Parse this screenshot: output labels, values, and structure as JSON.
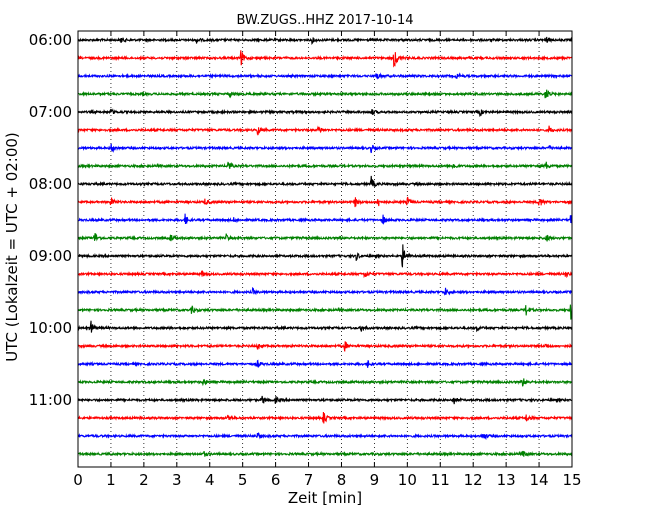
{
  "chart_data": {
    "type": "line",
    "title": "BW.ZUGS..HHZ 2017-10-14",
    "xlabel": "Zeit  [min]",
    "ylabel": "UTC (Lokalzeit = UTC + 02:00)",
    "xlim": [
      0,
      15
    ],
    "x_ticks": [
      "0",
      "1",
      "2",
      "3",
      "4",
      "5",
      "6",
      "7",
      "8",
      "9",
      "10",
      "11",
      "12",
      "13",
      "14",
      "15"
    ],
    "y_ticks": [
      "06:00",
      "07:00",
      "08:00",
      "09:00",
      "10:00",
      "11:00"
    ],
    "grid": "vertical dotted",
    "trace_colors": [
      "#000000",
      "#ff0000",
      "#0000ff",
      "#008000"
    ],
    "traces": [
      {
        "start": "06:00",
        "events": [
          [
            1.3,
            0.25
          ],
          [
            3.6,
            0.2
          ],
          [
            7.1,
            0.2
          ],
          [
            14.2,
            0.3
          ]
        ]
      },
      {
        "start": "06:15",
        "events": [
          [
            4.95,
            0.6
          ],
          [
            9.6,
            0.9
          ]
        ]
      },
      {
        "start": "06:30",
        "events": [
          [
            9.05,
            0.35
          ],
          [
            11.5,
            0.2
          ]
        ]
      },
      {
        "start": "06:45",
        "events": [
          [
            4.6,
            0.2
          ],
          [
            14.2,
            0.55
          ]
        ]
      },
      {
        "start": "07:00",
        "events": [
          [
            1.0,
            0.2
          ],
          [
            8.9,
            0.3
          ],
          [
            12.2,
            0.25
          ]
        ]
      },
      {
        "start": "07:15",
        "events": [
          [
            5.45,
            0.35
          ],
          [
            7.3,
            0.3
          ],
          [
            14.3,
            0.3
          ]
        ]
      },
      {
        "start": "07:30",
        "events": [
          [
            1.0,
            0.45
          ],
          [
            8.9,
            0.3
          ],
          [
            14.3,
            0.2
          ]
        ]
      },
      {
        "start": "07:45",
        "events": [
          [
            4.55,
            0.45
          ],
          [
            11.4,
            0.25
          ],
          [
            14.2,
            0.35
          ]
        ]
      },
      {
        "start": "08:00",
        "events": [
          [
            8.9,
            0.55
          ]
        ]
      },
      {
        "start": "08:15",
        "events": [
          [
            1.0,
            0.35
          ],
          [
            3.85,
            0.25
          ],
          [
            8.4,
            0.4
          ],
          [
            9.1,
            0.4
          ],
          [
            10.0,
            0.35
          ],
          [
            14.0,
            0.45
          ]
        ]
      },
      {
        "start": "08:30",
        "events": [
          [
            3.25,
            0.4
          ],
          [
            4.7,
            0.2
          ],
          [
            9.25,
            0.4
          ],
          [
            14.95,
            0.55
          ]
        ]
      },
      {
        "start": "08:45",
        "events": [
          [
            0.5,
            0.45
          ],
          [
            2.8,
            0.3
          ],
          [
            4.5,
            0.25
          ],
          [
            14.2,
            0.35
          ]
        ]
      },
      {
        "start": "09:00",
        "events": [
          [
            8.45,
            0.3
          ],
          [
            9.85,
            0.95
          ]
        ]
      },
      {
        "start": "09:15",
        "events": [
          [
            3.75,
            0.25
          ],
          [
            8.7,
            0.3
          ],
          [
            14.8,
            0.3
          ]
        ]
      },
      {
        "start": "09:30",
        "events": [
          [
            5.3,
            0.25
          ],
          [
            11.15,
            0.3
          ]
        ]
      },
      {
        "start": "09:45",
        "events": [
          [
            3.45,
            0.3
          ],
          [
            13.6,
            0.45
          ],
          [
            14.95,
            0.75
          ]
        ]
      },
      {
        "start": "10:00",
        "events": [
          [
            0.4,
            0.55
          ],
          [
            8.6,
            0.3
          ],
          [
            12.1,
            0.2
          ]
        ]
      },
      {
        "start": "10:15",
        "events": [
          [
            5.45,
            0.25
          ],
          [
            8.1,
            0.35
          ],
          [
            14.2,
            0.2
          ]
        ]
      },
      {
        "start": "10:30",
        "events": [
          [
            5.45,
            0.25
          ],
          [
            8.8,
            0.25
          ]
        ]
      },
      {
        "start": "10:45",
        "events": [
          [
            3.8,
            0.25
          ],
          [
            13.5,
            0.35
          ]
        ]
      },
      {
        "start": "11:00",
        "events": [
          [
            5.6,
            0.35
          ],
          [
            6.0,
            0.25
          ],
          [
            11.4,
            0.35
          ]
        ]
      },
      {
        "start": "11:15",
        "events": [
          [
            4.55,
            0.25
          ],
          [
            7.45,
            0.45
          ],
          [
            13.6,
            0.3
          ]
        ]
      },
      {
        "start": "11:30",
        "events": [
          [
            5.45,
            0.25
          ],
          [
            12.3,
            0.35
          ]
        ]
      },
      {
        "start": "11:45",
        "events": [
          [
            3.8,
            0.25
          ],
          [
            13.5,
            0.25
          ]
        ]
      }
    ]
  }
}
